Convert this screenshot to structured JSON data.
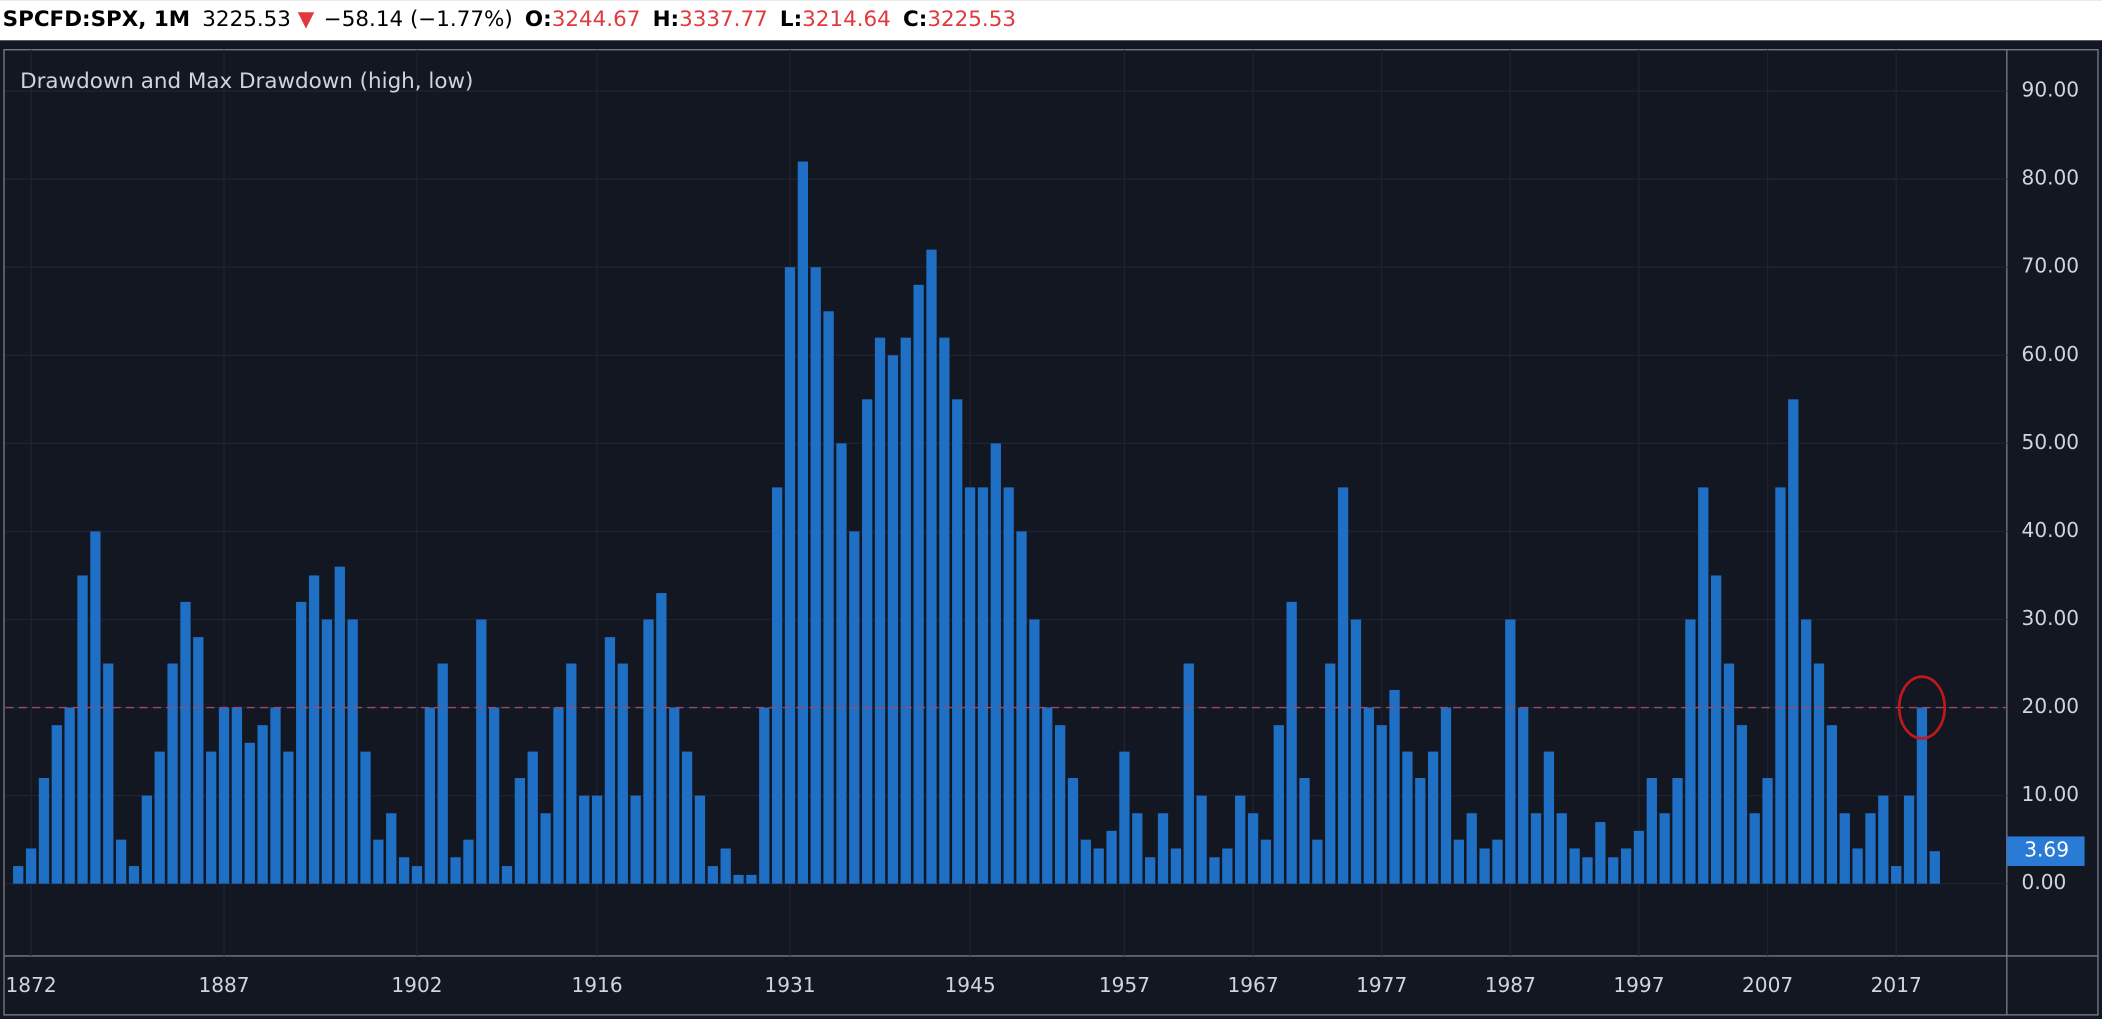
{
  "header": {
    "symbol": "SPCFD:SPX, 1M",
    "price": "3225.53",
    "arrow": "▼",
    "change": "−58.14 (−1.77%)",
    "o_label": "O:",
    "o_value": "3244.67",
    "h_label": "H:",
    "h_value": "3337.77",
    "l_label": "L:",
    "l_value": "3214.64",
    "c_label": "C:",
    "c_value": "3225.53"
  },
  "chart_data": {
    "type": "bar",
    "title": "Drawdown and Max Drawdown (high, low)",
    "color": "#1f6fc5",
    "x": [
      1871,
      1872,
      1873,
      1874,
      1875,
      1876,
      1877,
      1878,
      1879,
      1880,
      1881,
      1882,
      1883,
      1884,
      1885,
      1886,
      1887,
      1888,
      1889,
      1890,
      1891,
      1892,
      1893,
      1894,
      1895,
      1896,
      1897,
      1898,
      1899,
      1900,
      1901,
      1902,
      1903,
      1904,
      1905,
      1906,
      1907,
      1908,
      1909,
      1910,
      1911,
      1912,
      1913,
      1914,
      1915,
      1916,
      1917,
      1918,
      1919,
      1920,
      1921,
      1922,
      1923,
      1924,
      1925,
      1926,
      1927,
      1928,
      1929,
      1930,
      1931,
      1932,
      1933,
      1934,
      1935,
      1936,
      1937,
      1938,
      1939,
      1940,
      1941,
      1942,
      1943,
      1944,
      1945,
      1946,
      1947,
      1948,
      1949,
      1950,
      1951,
      1952,
      1953,
      1954,
      1955,
      1956,
      1957,
      1958,
      1959,
      1960,
      1961,
      1962,
      1963,
      1964,
      1965,
      1966,
      1967,
      1968,
      1969,
      1970,
      1971,
      1972,
      1973,
      1974,
      1975,
      1976,
      1977,
      1978,
      1979,
      1980,
      1981,
      1982,
      1983,
      1984,
      1985,
      1986,
      1987,
      1988,
      1989,
      1990,
      1991,
      1992,
      1993,
      1994,
      1995,
      1996,
      1997,
      1998,
      1999,
      2000,
      2001,
      2002,
      2003,
      2004,
      2005,
      2006,
      2007,
      2008,
      2009,
      2010,
      2011,
      2012,
      2013,
      2014,
      2015,
      2016,
      2017,
      2018,
      2019,
      2020
    ],
    "values": [
      2,
      4,
      12,
      18,
      20,
      35,
      40,
      25,
      5,
      2,
      10,
      15,
      25,
      32,
      28,
      15,
      20,
      20,
      16,
      18,
      20,
      15,
      32,
      35,
      30,
      36,
      30,
      15,
      5,
      8,
      3,
      2,
      20,
      25,
      3,
      5,
      30,
      20,
      2,
      12,
      15,
      8,
      20,
      25,
      10,
      10,
      28,
      25,
      10,
      30,
      33,
      20,
      15,
      10,
      2,
      4,
      1,
      1,
      20,
      45,
      70,
      82,
      70,
      65,
      50,
      40,
      55,
      62,
      60,
      62,
      68,
      72,
      62,
      55,
      45,
      45,
      50,
      45,
      40,
      30,
      20,
      18,
      12,
      5,
      4,
      6,
      15,
      8,
      3,
      8,
      4,
      25,
      10,
      3,
      4,
      10,
      8,
      5,
      18,
      32,
      12,
      5,
      25,
      45,
      30,
      20,
      18,
      22,
      15,
      12,
      15,
      20,
      5,
      8,
      4,
      5,
      30,
      20,
      8,
      15,
      8,
      4,
      3,
      7,
      3,
      4,
      6,
      12,
      8,
      12,
      30,
      45,
      35,
      25,
      18,
      8,
      12,
      45,
      55,
      30,
      25,
      18,
      8,
      4,
      8,
      10,
      2,
      10,
      20,
      3.69
    ],
    "xlim": [
      1870,
      2025.6
    ],
    "xticks": [
      1872,
      1887,
      1902,
      1916,
      1931,
      1945,
      1957,
      1967,
      1977,
      1987,
      1997,
      2007,
      2017
    ],
    "ylim": [
      -8.2,
      94.7
    ],
    "yticks": [
      {
        "value": 0,
        "label": "0.00"
      },
      {
        "value": 10,
        "label": "10.00"
      },
      {
        "value": 20,
        "label": "20.00"
      },
      {
        "value": 30,
        "label": "30.00"
      },
      {
        "value": 40,
        "label": "40.00"
      },
      {
        "value": 50,
        "label": "50.00"
      },
      {
        "value": 60,
        "label": "60.00"
      },
      {
        "value": 70,
        "label": "70.00"
      },
      {
        "value": 80,
        "label": "80.00"
      },
      {
        "value": 90,
        "label": "90.00"
      }
    ],
    "hline": 20,
    "grid": true
  }
}
